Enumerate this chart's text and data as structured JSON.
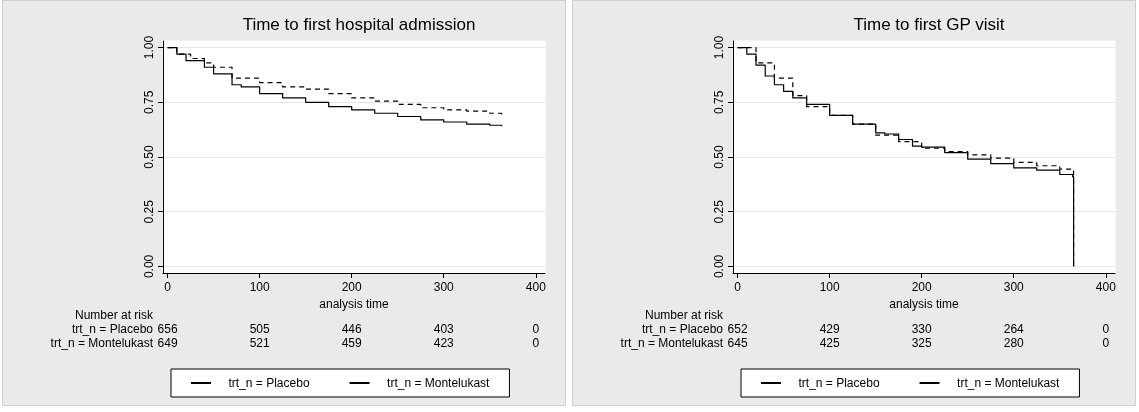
{
  "chart_data": [
    {
      "type": "step",
      "title": "Time to first hospital admission",
      "xlabel": "analysis time",
      "xlim": [
        -5,
        410
      ],
      "xticks": [
        0,
        100,
        200,
        300,
        400
      ],
      "ylim": [
        -0.03,
        1.03
      ],
      "yticks": [
        {
          "value": 0,
          "label": "0.00"
        },
        {
          "value": 0.25,
          "label": "0.25"
        },
        {
          "value": 0.5,
          "label": "0.50"
        },
        {
          "value": 0.75,
          "label": "0.75"
        },
        {
          "value": 1,
          "label": "1.00"
        }
      ],
      "grid": "y",
      "legend": "bottom",
      "series": [
        {
          "name": "trt_n = Placebo",
          "color": "#000000",
          "line_style": "solid",
          "x": [
            0,
            10,
            20,
            40,
            50,
            70,
            80,
            100,
            125,
            150,
            175,
            200,
            225,
            250,
            275,
            300,
            325,
            350,
            363
          ],
          "values": [
            1,
            0.97,
            0.94,
            0.91,
            0.88,
            0.83,
            0.82,
            0.79,
            0.77,
            0.75,
            0.73,
            0.715,
            0.7,
            0.685,
            0.67,
            0.66,
            0.65,
            0.645,
            0.64
          ]
        },
        {
          "name": "trt_n = Montelukast",
          "color": "#000000",
          "line_style": "dashed",
          "x": [
            0,
            10,
            25,
            40,
            50,
            70,
            100,
            125,
            150,
            175,
            200,
            225,
            250,
            275,
            300,
            325,
            350,
            363
          ],
          "values": [
            1,
            0.97,
            0.95,
            0.93,
            0.91,
            0.86,
            0.84,
            0.82,
            0.81,
            0.79,
            0.77,
            0.755,
            0.74,
            0.725,
            0.715,
            0.71,
            0.7,
            0.69
          ]
        }
      ],
      "annotations": [
        "Number at risk",
        "trt_n = Placebo",
        "656",
        "505",
        "446",
        "403",
        "0",
        "trt_n = Montelukast",
        "649",
        "521",
        "459",
        "423",
        "0"
      ]
    },
    {
      "type": "step",
      "title": "Time to first GP visit",
      "xlabel": "analysis time",
      "xlim": [
        -5,
        410
      ],
      "xticks": [
        0,
        100,
        200,
        300,
        400
      ],
      "ylim": [
        -0.03,
        1.03
      ],
      "yticks": [
        {
          "value": 0,
          "label": "0.00"
        },
        {
          "value": 0.25,
          "label": "0.25"
        },
        {
          "value": 0.5,
          "label": "0.50"
        },
        {
          "value": 0.75,
          "label": "0.75"
        },
        {
          "value": 1,
          "label": "1.00"
        }
      ],
      "grid": "y",
      "legend": "bottom",
      "series": [
        {
          "name": "trt_n = Placebo",
          "color": "#000000",
          "line_style": "solid",
          "x": [
            0,
            10,
            20,
            30,
            40,
            50,
            60,
            75,
            100,
            125,
            150,
            160,
            175,
            190,
            200,
            225,
            250,
            275,
            300,
            325,
            350,
            364,
            365
          ],
          "values": [
            1,
            0.97,
            0.92,
            0.87,
            0.83,
            0.8,
            0.77,
            0.74,
            0.69,
            0.65,
            0.61,
            0.605,
            0.58,
            0.55,
            0.545,
            0.52,
            0.49,
            0.47,
            0.45,
            0.44,
            0.42,
            0.41,
            0
          ]
        },
        {
          "name": "trt_n = Montelukast",
          "color": "#000000",
          "line_style": "dashed",
          "x": [
            0,
            20,
            40,
            60,
            75,
            100,
            125,
            150,
            175,
            200,
            225,
            250,
            275,
            300,
            325,
            350,
            364,
            365
          ],
          "values": [
            1,
            0.93,
            0.86,
            0.78,
            0.73,
            0.69,
            0.65,
            0.6,
            0.57,
            0.54,
            0.525,
            0.51,
            0.495,
            0.475,
            0.46,
            0.445,
            0.44,
            0
          ]
        }
      ],
      "annotations": [
        "Number at risk",
        "trt_n = Placebo",
        "652",
        "429",
        "330",
        "264",
        "0",
        "trt_n = Montelukast",
        "645",
        "425",
        "325",
        "280",
        "0"
      ]
    }
  ]
}
